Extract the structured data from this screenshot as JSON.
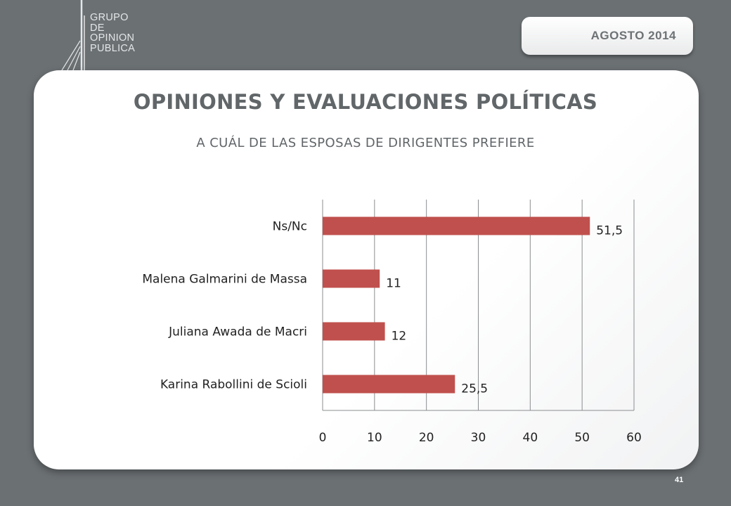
{
  "logo": {
    "lines": [
      "GRUPO",
      "DE",
      "OPINION",
      "PUBLICA"
    ]
  },
  "date": "AGOSTO  2014",
  "page_number": "41",
  "colors": {
    "bar": "#c0504d",
    "background": "#6b7073",
    "text": "#616669"
  },
  "chart_data": {
    "type": "bar",
    "orientation": "horizontal",
    "title": "OPINIONES Y EVALUACIONES POLÍTICAS",
    "subtitle": "A CUÁL DE LAS ESPOSAS DE DIRIGENTES PREFIERE",
    "categories": [
      "Ns/Nc",
      "Malena Galmarini de Massa",
      "Juliana Awada de Macri",
      "Karina Rabollini de Scioli"
    ],
    "values": [
      51.5,
      11,
      12,
      25.5
    ],
    "value_labels": [
      "51,5",
      "11",
      "12",
      "25,5"
    ],
    "xlim": [
      0,
      60
    ],
    "ticks": [
      "0",
      "10",
      "20",
      "30",
      "40",
      "50",
      "60"
    ],
    "grid": true,
    "legend": "none"
  }
}
